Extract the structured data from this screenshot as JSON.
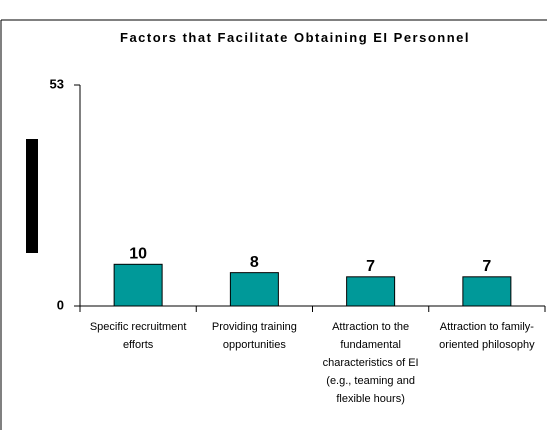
{
  "chart_data": {
    "type": "bar",
    "title": "Factors that Facilitate Obtaining EI Personnel",
    "categories": [
      "Specific recruitment efforts",
      "Providing training opportunities",
      "Attraction to the fundamental characteristics of EI (e.g., teaming and flexible hours)",
      "Attraction to family-oriented philosophy"
    ],
    "values": [
      10,
      8,
      7,
      7
    ],
    "color": "#009999",
    "ylim": [
      0,
      53
    ],
    "yticks": [
      0,
      53
    ]
  }
}
